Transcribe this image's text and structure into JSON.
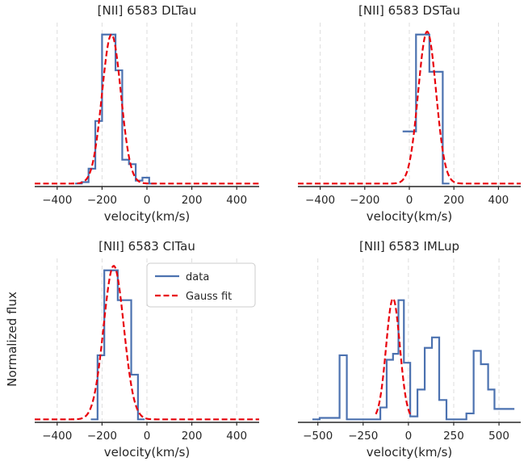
{
  "figure": {
    "ylabel": "Normalized flux",
    "legend": {
      "location": "top-right of bottom-left panel",
      "entries": [
        "data",
        "Gauss fit"
      ]
    },
    "colors": {
      "data": "#4c72b0",
      "fit": "#e8000b",
      "axis": "#262626",
      "grid": "#dddddd"
    }
  },
  "chart_data": [
    {
      "type": "line",
      "title": "[NII] 6583 DLTau",
      "xlabel": "velocity(km/s)",
      "ylabel": "",
      "xlim": [
        -500,
        500
      ],
      "ylim": [
        -0.02,
        1.08
      ],
      "xticks": [
        -400,
        -200,
        0,
        200,
        400
      ],
      "grid": "vertical dashed",
      "series": [
        {
          "name": "data",
          "style": "step",
          "x": [
            -320,
            -290,
            -260,
            -230,
            -200,
            -170,
            -140,
            -110,
            -80,
            -50,
            -20,
            10,
            40
          ],
          "y": [
            0,
            0.01,
            0.1,
            0.42,
            1.0,
            1.0,
            0.76,
            0.16,
            0.13,
            0.02,
            0.04,
            0,
            0
          ]
        },
        {
          "name": "Gauss fit",
          "style": "dashed",
          "mu": -158,
          "sigma": 42,
          "amp": 1.0,
          "x": [
            -500,
            500
          ]
        }
      ]
    },
    {
      "type": "line",
      "title": "[NII] 6583 DSTau",
      "xlabel": "velocity(km/s)",
      "ylabel": "",
      "xlim": [
        -500,
        500
      ],
      "ylim": [
        -0.02,
        1.08
      ],
      "xticks": [
        -400,
        -200,
        0,
        200,
        400
      ],
      "grid": "vertical dashed",
      "series": [
        {
          "name": "data",
          "style": "step",
          "x": [
            -30,
            0,
            30,
            60,
            90,
            120,
            150,
            180
          ],
          "y": [
            0.35,
            0.35,
            1.0,
            1.0,
            0.75,
            0.75,
            0,
            0
          ]
        },
        {
          "name": "Gauss fit",
          "style": "dashed",
          "mu": 80,
          "sigma": 40,
          "amp": 1.02,
          "x": [
            -500,
            500
          ]
        }
      ]
    },
    {
      "type": "line",
      "title": "[NII] 6583 CITau",
      "xlabel": "velocity(km/s)",
      "ylabel": "",
      "xlim": [
        -500,
        500
      ],
      "ylim": [
        -0.02,
        1.08
      ],
      "xticks": [
        -400,
        -200,
        0,
        200,
        400
      ],
      "grid": "vertical dashed",
      "series": [
        {
          "name": "data",
          "style": "step",
          "x": [
            -250,
            -220,
            -190,
            -160,
            -130,
            -100,
            -70,
            -40,
            -10
          ],
          "y": [
            0,
            0.43,
            1.0,
            1.0,
            0.8,
            0.8,
            0.3,
            0,
            0
          ]
        },
        {
          "name": "Gauss fit",
          "style": "dashed",
          "mu": -148,
          "sigma": 45,
          "amp": 1.03,
          "x": [
            -500,
            500
          ]
        }
      ]
    },
    {
      "type": "line",
      "title": "[NII] 6583 IMLup",
      "xlabel": "velocity(km/s)",
      "ylabel": "",
      "xlim": [
        -610,
        620
      ],
      "ylim": [
        -0.02,
        1.08
      ],
      "xticks": [
        -500,
        -250,
        0,
        250,
        500
      ],
      "grid": "vertical dashed",
      "series": [
        {
          "name": "data",
          "style": "step",
          "x": [
            -530,
            -490,
            -420,
            -380,
            -340,
            -300,
            -230,
            -190,
            -155,
            -120,
            -85,
            -55,
            -25,
            10,
            50,
            90,
            130,
            170,
            210,
            245,
            280,
            320,
            360,
            400,
            440,
            475,
            515,
            545,
            585
          ],
          "y": [
            0,
            0.01,
            0.01,
            0.43,
            0,
            0,
            0,
            0,
            0.08,
            0.4,
            0.44,
            0.8,
            0.38,
            0.02,
            0.2,
            0.48,
            0.55,
            0.13,
            0,
            0,
            0,
            0.04,
            0.46,
            0.37,
            0.2,
            0.07,
            0.07,
            0.07,
            0.07
          ]
        },
        {
          "name": "Gauss fit",
          "style": "dashed",
          "mu": -85,
          "sigma": 38,
          "amp": 0.81,
          "x": [
            -180,
            10
          ]
        }
      ]
    }
  ]
}
